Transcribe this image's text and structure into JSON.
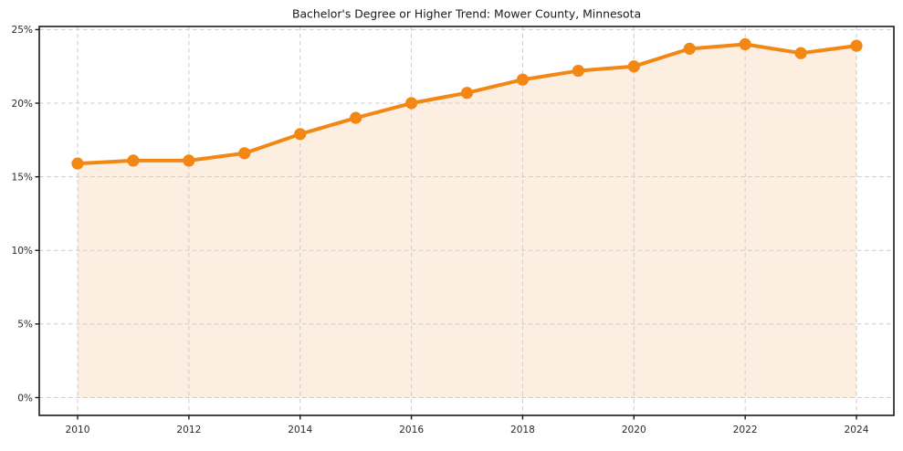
{
  "figure": {
    "background": "#ffffff"
  },
  "chart_data": {
    "type": "area",
    "title": "Bachelor's Degree or Higher Trend: Mower County, Minnesota",
    "x": [
      2010,
      2011,
      2012,
      2013,
      2014,
      2015,
      2016,
      2017,
      2018,
      2019,
      2020,
      2021,
      2022,
      2023,
      2024
    ],
    "values": [
      15.9,
      16.1,
      16.1,
      16.6,
      17.9,
      19.0,
      20.0,
      20.7,
      21.6,
      22.2,
      22.5,
      23.7,
      24.0,
      23.4,
      23.9
    ],
    "series_name": "Bachelor's degree or higher (%)",
    "xlabel": "",
    "ylabel": "",
    "ylim": [
      0,
      25
    ],
    "yticks": [
      0,
      5,
      10,
      15,
      20,
      25
    ],
    "ytick_labels": [
      "0%",
      "5%",
      "10%",
      "15%",
      "20%",
      "25%"
    ],
    "xticks": [
      2010,
      2012,
      2014,
      2016,
      2018,
      2020,
      2022,
      2024
    ],
    "xtick_labels": [
      "2010",
      "2012",
      "2014",
      "2016",
      "2018",
      "2020",
      "2022",
      "2024"
    ],
    "grid": true,
    "grid_style": "dashed",
    "legend": "none",
    "marker": "circle",
    "colors": {
      "line": "#f28714",
      "marker": "#f28714",
      "fill": "#fceee1",
      "grid": "#cccccc",
      "axis": "#1a1a1a",
      "title": "#1a1a1a",
      "tick_label": "#2b2b2b",
      "background": "#ffffff"
    }
  }
}
